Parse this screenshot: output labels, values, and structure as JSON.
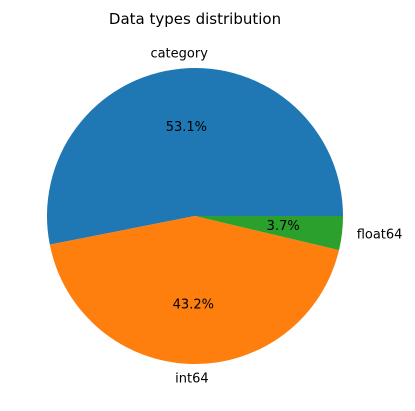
{
  "chart_data": {
    "type": "pie",
    "title": "Data types distribution",
    "slices": [
      {
        "label": "category",
        "percent_label": "53.1%",
        "value": 53.1,
        "color": "#1f77b4"
      },
      {
        "label": "int64",
        "percent_label": "43.2%",
        "value": 43.2,
        "color": "#ff7f0e"
      },
      {
        "label": "float64",
        "percent_label": "3.7%",
        "value": 3.7,
        "color": "#2ca02c"
      }
    ],
    "start_angle_deg": 0,
    "direction": "counterclockwise",
    "legend": "none"
  }
}
